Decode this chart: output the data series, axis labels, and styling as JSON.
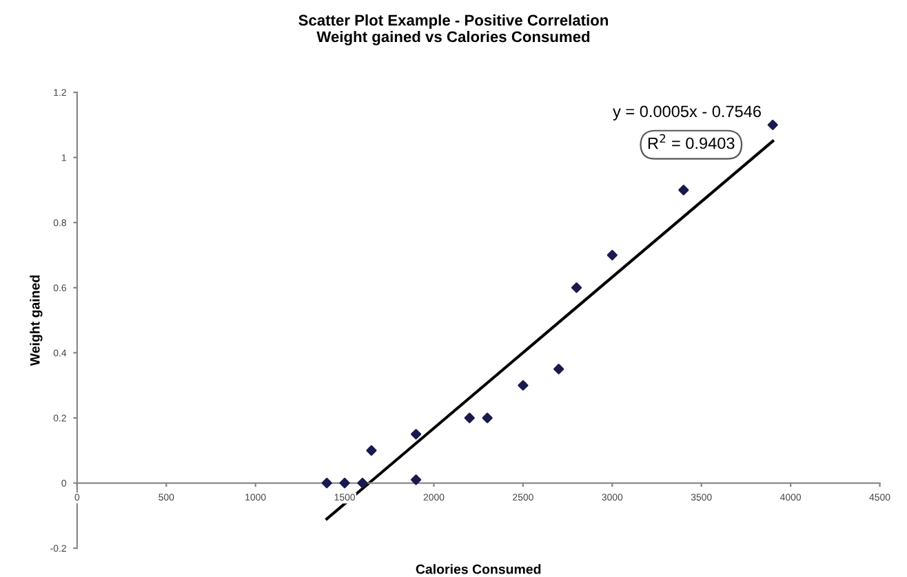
{
  "chart_data": {
    "type": "scatter",
    "title": "Scatter Plot Example - Positive Correlation\nWeight gained vs Calories Consumed",
    "xlabel": "Calories Consumed",
    "ylabel": "Weight gained",
    "series": [
      {
        "color": "#1a1a4e",
        "marker": "diamond",
        "x": [
          1400,
          1500,
          1600,
          1650,
          1900,
          1900,
          2200,
          2300,
          2500,
          2700,
          2800,
          3000,
          3400,
          3900
        ],
        "values": [
          0,
          0,
          0,
          0.1,
          0.15,
          0.01,
          0.2,
          0.2,
          0.3,
          0.35,
          0.6,
          0.7,
          0.9,
          1.1
        ]
      },
      {
        "type": "line",
        "color": "#000000",
        "marker": "none",
        "line_style": "solid",
        "x": [
          1400,
          3900
        ],
        "values": [
          -0.11,
          1.05
        ]
      }
    ],
    "annotations": [
      "y = 0.0005x - 0.7546",
      "R$^{2}$ = 0.9403"
    ],
    "xlim": [
      0,
      4500
    ],
    "xticks": [
      0,
      500,
      1000,
      1500,
      2000,
      2500,
      3000,
      3500,
      4000,
      4500
    ],
    "ylim": [
      -0.2,
      1.2
    ],
    "yticks": [
      -0.2,
      0,
      0.2,
      0.4,
      0.6,
      0.8,
      1,
      1.2
    ],
    "grid": false,
    "legend": false
  }
}
